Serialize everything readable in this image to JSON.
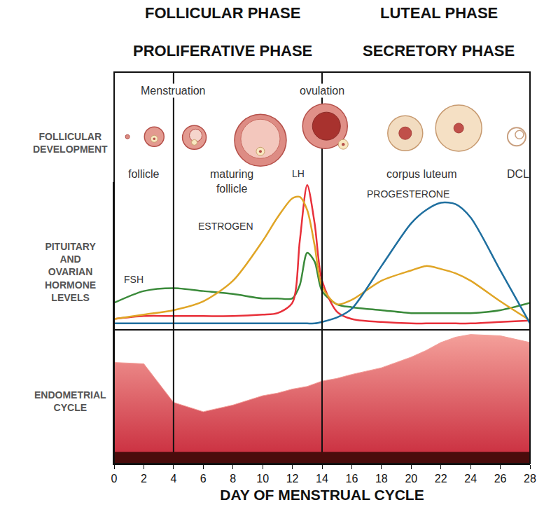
{
  "chart_data": {
    "type": "line",
    "phases": [
      {
        "ovarian": "FOLLICULAR PHASE",
        "uterine": "PROLIFERATIVE PHASE"
      },
      {
        "ovarian": "LUTEAL PHASE",
        "uterine": "SECRETORY PHASE"
      }
    ],
    "row_labels": [
      [
        "FOLLICULAR",
        "DEVELOPMENT"
      ],
      [
        "PITUITARY",
        "AND",
        "OVARIAN",
        "HORMONE",
        "LEVELS"
      ]
    ],
    "events": [
      {
        "label": "Menstruation",
        "x": 4
      },
      {
        "label": "ovulation",
        "x": 14
      }
    ],
    "follicular_stages": [
      {
        "label": [
          "follicle"
        ],
        "x": 2
      },
      {
        "label": [
          "maturing",
          "follicle"
        ],
        "x": 7.9
      },
      {
        "label": [
          "corpus luteum"
        ],
        "x": 20.7
      },
      {
        "label": [
          "DCL"
        ],
        "x": 27.2
      }
    ],
    "xlabel": "DAY OF MENSTRUAL CYCLE",
    "xlim": [
      0,
      28
    ],
    "xticks": [
      0,
      2,
      4,
      6,
      8,
      10,
      12,
      14,
      16,
      18,
      20,
      22,
      24,
      26,
      28
    ],
    "ylim": [
      0,
      100
    ],
    "y2lim": [
      0,
      100
    ],
    "tick_labels": "x",
    "x": [
      0,
      2,
      4,
      6,
      8,
      10,
      11,
      12,
      12.5,
      13,
      13.5,
      14,
      15,
      16,
      18,
      20,
      21,
      22,
      23,
      24,
      26,
      28
    ],
    "series": [
      {
        "name": "FSH",
        "color": "#3a8a3a",
        "type": "line",
        "values": [
          18,
          26,
          28,
          26,
          24,
          21,
          21,
          21,
          30,
          52,
          46,
          26,
          17,
          15,
          13,
          11,
          11,
          11,
          11,
          11,
          13,
          18
        ]
      },
      {
        "name": "LH",
        "color": "#e8303a",
        "type": "line",
        "values": [
          7,
          9,
          9,
          9,
          9,
          10,
          11,
          18,
          60,
          98,
          72,
          33,
          12,
          7,
          5,
          4,
          4,
          4,
          4,
          4,
          5,
          6
        ]
      },
      {
        "name": "ESTROGEN",
        "color": "#e0a526",
        "type": "line",
        "values": [
          7,
          10,
          13,
          19,
          33,
          60,
          76,
          89,
          90,
          81,
          57,
          29,
          17,
          20,
          33,
          40,
          43,
          41,
          38,
          33,
          19,
          6
        ]
      },
      {
        "name": "PROGESTERONE",
        "color": "#1f6f9f",
        "type": "line",
        "values": [
          4,
          4,
          4,
          4,
          4,
          4,
          4,
          4,
          4,
          4,
          4,
          5,
          8,
          14,
          43,
          72,
          81,
          86,
          85,
          76,
          40,
          4
        ]
      },
      {
        "name": "ENDOMETRIAL CYCLE",
        "color": "#f4a09a",
        "type": "area",
        "axis": "y2",
        "values": [
          76,
          75,
          46,
          39,
          44,
          51,
          53,
          56,
          57,
          58,
          60,
          62,
          64,
          67,
          72,
          80,
          85,
          91,
          95,
          97,
          96,
          91
        ]
      }
    ]
  }
}
